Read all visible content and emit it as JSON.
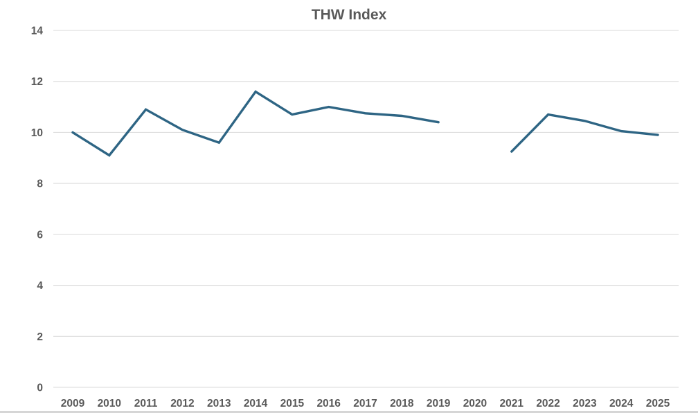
{
  "chart_data": {
    "type": "line",
    "title": "THW Index",
    "categories": [
      "2009",
      "2010",
      "2011",
      "2012",
      "2013",
      "2014",
      "2015",
      "2016",
      "2017",
      "2018",
      "2019",
      "2020",
      "2021",
      "2022",
      "2023",
      "2024",
      "2025"
    ],
    "values": [
      10.0,
      9.1,
      10.9,
      10.1,
      9.6,
      11.6,
      10.7,
      11.0,
      10.75,
      10.65,
      10.4,
      null,
      9.25,
      10.7,
      10.45,
      10.05,
      9.9
    ],
    "xlabel": "",
    "ylabel": "",
    "ylim": [
      0,
      14
    ],
    "yticks": [
      0,
      2,
      4,
      6,
      8,
      10,
      12,
      14
    ],
    "grid": "horizontal",
    "legend": "none"
  },
  "colors": {
    "line": "#2e6584",
    "grid": "#d9d9d9",
    "text": "#595959",
    "bottom_border": "#d6d6d6",
    "background": "#ffffff"
  }
}
